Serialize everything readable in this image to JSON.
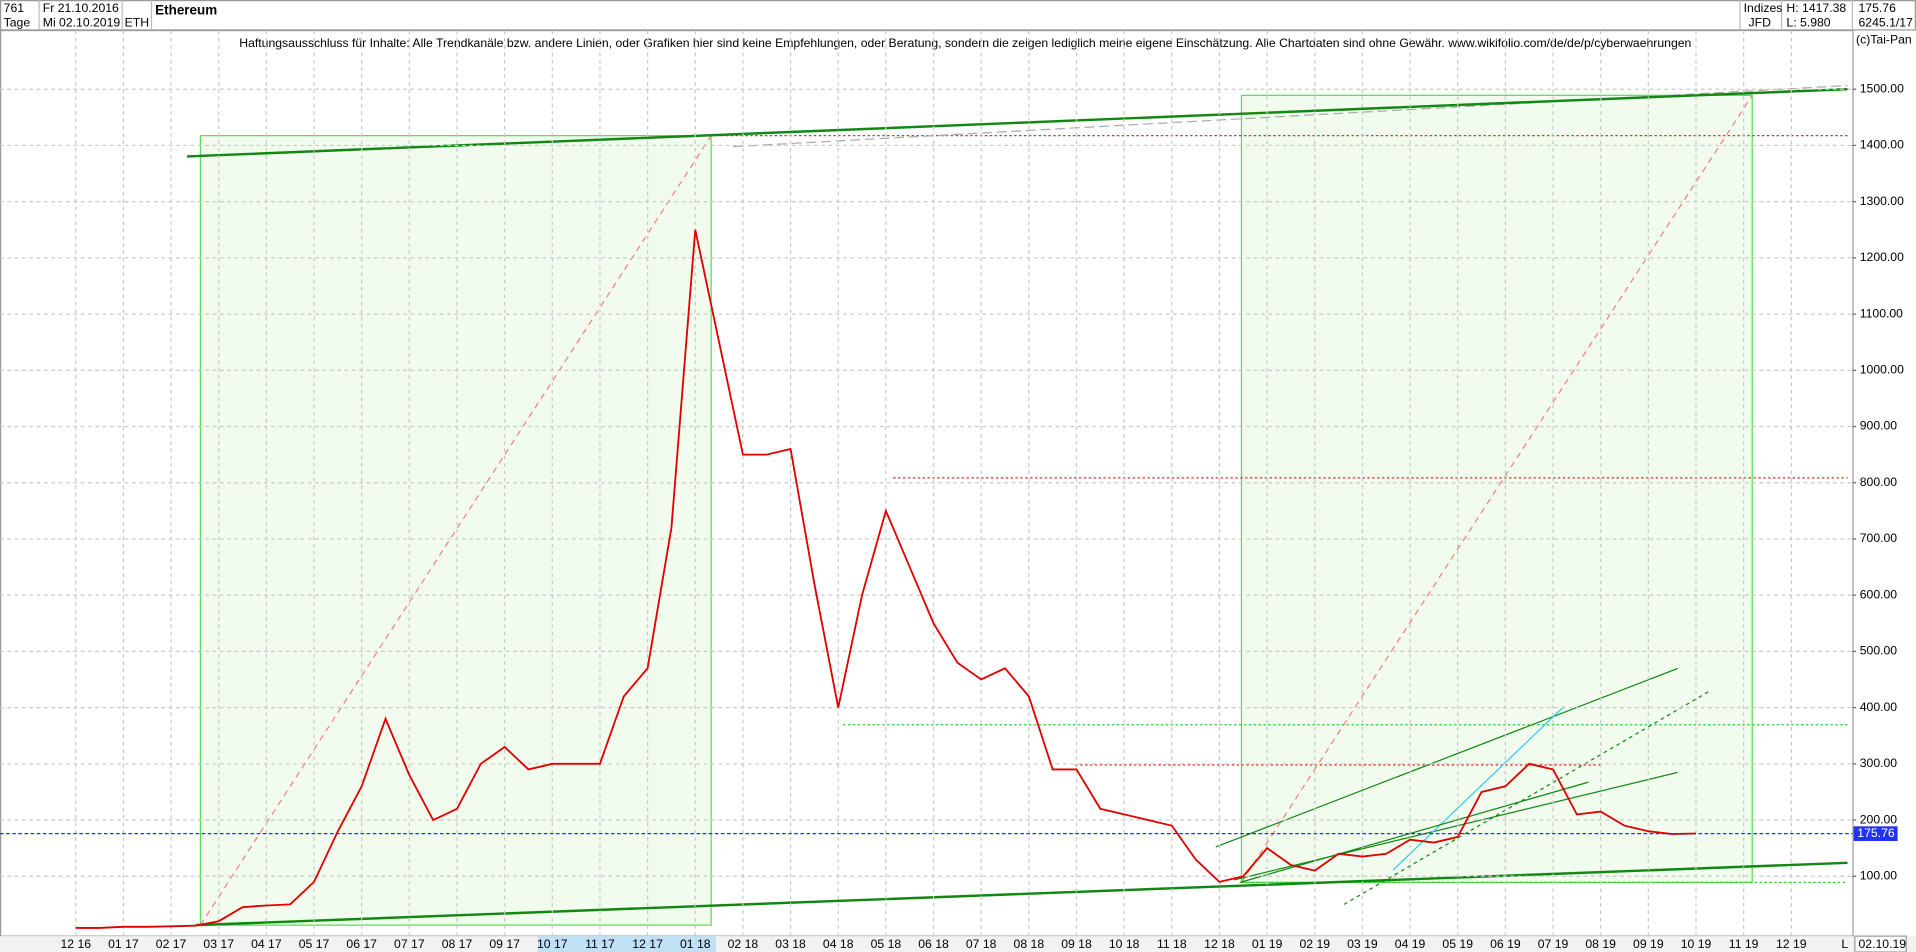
{
  "header": {
    "count": "761",
    "date_from": "Fr 21.10.2016",
    "period": "Tage",
    "date_to": "Mi 02.10.2019",
    "symbol": "ETH",
    "market": "Indizes",
    "source": "JFD",
    "high": "H: 1417.38",
    "low": "L: 5.980",
    "volume": "6245.1/17",
    "copyright": "(c)Tai-Pan",
    "cursor_date": "02.10.19",
    "axis_mode": "L"
  },
  "chart_data": {
    "type": "line",
    "title": "Ethereum",
    "subtitle": "Haftungsausschluss für Inhalte: Alle Trendkanäle bzw. andere Linien, oder Grafiken hier sind keine Empfehlungen, oder Beratung, sondern die zeigen lediglich meine eigene Einschätzung. Alle Chartdaten sind ohne Gewähr.  www.wikifolio.com/de/de/p/cyberwaehrungen",
    "categories": [
      "12 16",
      null,
      "01 17",
      null,
      "02 17",
      null,
      "03 17",
      null,
      "04 17",
      null,
      "05 17",
      null,
      "06 17",
      null,
      "07 17",
      null,
      "08 17",
      null,
      "09 17",
      null,
      "10 17",
      null,
      "11 17",
      null,
      "12 17",
      null,
      "01 18",
      null,
      "02 18",
      null,
      "03 18",
      null,
      "04 18",
      null,
      "05 18",
      null,
      "06 18",
      null,
      "07 18",
      null,
      "08 18",
      null,
      "09 18",
      null,
      "10 18",
      null,
      "11 18",
      null,
      "12 18",
      null,
      "01 19",
      null,
      "02 19",
      null,
      "03 19",
      null,
      "04 19",
      null,
      "05 19",
      null,
      "06 19",
      null,
      "07 19",
      null,
      "08 19",
      null,
      "09 19",
      null,
      "10 19",
      null,
      "11 19",
      null,
      "12 19",
      null
    ],
    "series": [
      {
        "name": "ETH",
        "color": "#e00000",
        "values": [
          8,
          8,
          10,
          10,
          11,
          12,
          20,
          45,
          48,
          50,
          90,
          180,
          260,
          380,
          280,
          200,
          220,
          300,
          330,
          290,
          300,
          300,
          300,
          420,
          470,
          720,
          1250,
          1050,
          850,
          850,
          860,
          620,
          400,
          600,
          750,
          650,
          550,
          480,
          450,
          470,
          420,
          290,
          290,
          220,
          210,
          200,
          190,
          130,
          90,
          100,
          150,
          120,
          110,
          140,
          135,
          140,
          165,
          160,
          170,
          250,
          260,
          300,
          290,
          210,
          215,
          190,
          180,
          175,
          176,
          null,
          null,
          null,
          null,
          null
        ]
      }
    ],
    "current_price": 175.76,
    "ylim": [
      0,
      1600
    ],
    "yticks": [
      {
        "value": 100,
        "label": "100.00"
      },
      {
        "value": 200,
        "label": "200.00"
      },
      {
        "value": 300,
        "label": "300.00"
      },
      {
        "value": 400,
        "label": "400.00"
      },
      {
        "value": 500,
        "label": "500.00"
      },
      {
        "value": 600,
        "label": "600.00"
      },
      {
        "value": 700,
        "label": "700.00"
      },
      {
        "value": 800,
        "label": "800.00"
      },
      {
        "value": 900,
        "label": "900.00"
      },
      {
        "value": 1000,
        "label": "1000.00"
      },
      {
        "value": 1100,
        "label": "1100.00"
      },
      {
        "value": 1200,
        "label": "1200.00"
      },
      {
        "value": 1300,
        "label": "1300.00"
      },
      {
        "value": 1400,
        "label": "1400.00"
      },
      {
        "value": 1500,
        "label": "1500.00"
      }
    ],
    "grid": true
  }
}
